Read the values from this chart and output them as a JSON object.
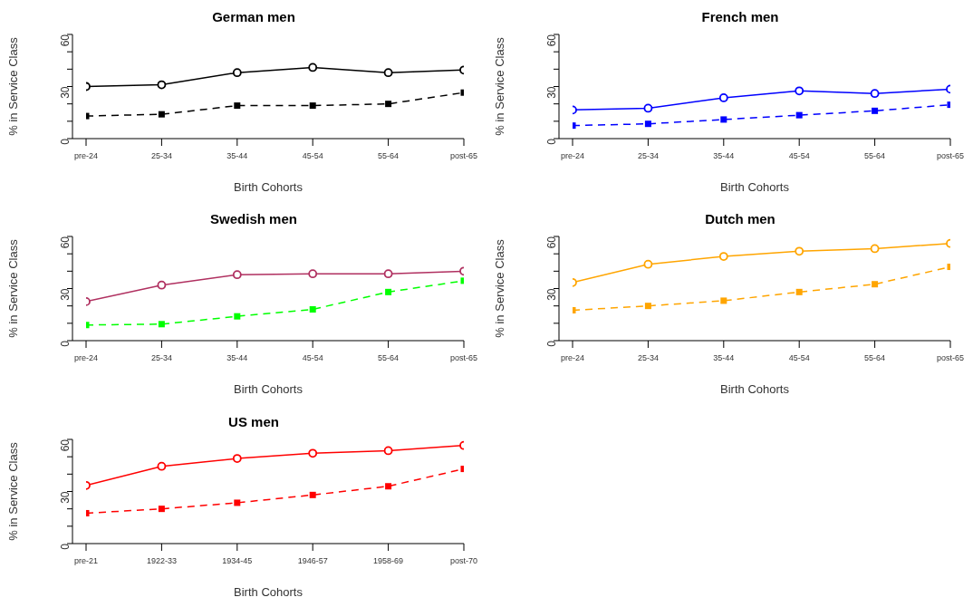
{
  "chart_data": [
    {
      "type": "line",
      "title": "German men",
      "xlabel": "Birth Cohorts",
      "ylabel": "% in Service Class",
      "categories": [
        "pre-24",
        "25-34",
        "35-44",
        "45-54",
        "55-64",
        "post-65"
      ],
      "ylim": [
        0,
        60
      ],
      "yticks": [
        0,
        {
          "value": 10,
          "label": null
        },
        {
          "value": 20,
          "label": null
        },
        30,
        {
          "value": 40,
          "label": null
        },
        {
          "value": 50,
          "label": null
        },
        60
      ],
      "grid": false,
      "legend": false,
      "series": [
        {
          "color": "#000000",
          "marker": "circle",
          "line_style": "solid",
          "values": [
            30,
            31,
            38,
            41,
            38,
            39.5
          ]
        },
        {
          "color": "#000000",
          "marker": "square",
          "line_style": "dashed",
          "values": [
            13,
            14,
            19,
            19,
            20,
            26.5
          ]
        }
      ]
    },
    {
      "type": "line",
      "title": "French men",
      "xlabel": "Birth Cohorts",
      "ylabel": "% in Service Class",
      "categories": [
        "pre-24",
        "25-34",
        "35-44",
        "45-54",
        "55-64",
        "post-65"
      ],
      "ylim": [
        0,
        60
      ],
      "yticks": [
        0,
        {
          "value": 10,
          "label": null
        },
        {
          "value": 20,
          "label": null
        },
        30,
        {
          "value": 40,
          "label": null
        },
        {
          "value": 50,
          "label": null
        },
        60
      ],
      "grid": false,
      "legend": false,
      "series": [
        {
          "color": "#0000ff",
          "marker": "circle",
          "line_style": "solid",
          "values": [
            16.5,
            17.5,
            23.5,
            27.5,
            26,
            28.5
          ]
        },
        {
          "color": "#0000ff",
          "marker": "square",
          "line_style": "dashed",
          "values": [
            7.5,
            8.5,
            11,
            13.5,
            16,
            19.5
          ]
        }
      ]
    },
    {
      "type": "line",
      "title": "Swedish men",
      "xlabel": "Birth Cohorts",
      "ylabel": "% in Service Class",
      "categories": [
        "pre-24",
        "25-34",
        "35-44",
        "45-54",
        "55-64",
        "post-65"
      ],
      "ylim": [
        0,
        60
      ],
      "yticks": [
        0,
        {
          "value": 10,
          "label": null
        },
        {
          "value": 20,
          "label": null
        },
        30,
        {
          "value": 40,
          "label": null
        },
        {
          "value": 50,
          "label": null
        },
        60
      ],
      "grid": false,
      "legend": false,
      "series": [
        {
          "color": "#b03060",
          "marker": "circle",
          "line_style": "solid",
          "values": [
            22.5,
            32,
            38,
            38.5,
            38.5,
            40
          ]
        },
        {
          "color": "#00ff00",
          "marker": "square",
          "line_style": "dashed",
          "values": [
            9,
            9.5,
            14,
            18,
            28,
            34.5
          ]
        }
      ]
    },
    {
      "type": "line",
      "title": "Dutch men",
      "xlabel": "Birth Cohorts",
      "ylabel": "% in Service Class",
      "categories": [
        "pre-24",
        "25-34",
        "35-44",
        "45-54",
        "55-64",
        "post-65"
      ],
      "ylim": [
        0,
        60
      ],
      "yticks": [
        0,
        {
          "value": 10,
          "label": null
        },
        {
          "value": 20,
          "label": null
        },
        30,
        {
          "value": 40,
          "label": null
        },
        {
          "value": 50,
          "label": null
        },
        60
      ],
      "grid": false,
      "legend": false,
      "series": [
        {
          "color": "#ffa500",
          "marker": "circle",
          "line_style": "solid",
          "values": [
            33.5,
            44,
            48.5,
            51.5,
            53,
            56
          ]
        },
        {
          "color": "#ffa500",
          "marker": "square",
          "line_style": "dashed",
          "values": [
            17.5,
            20,
            23,
            28,
            32.5,
            42.5
          ]
        }
      ]
    },
    {
      "type": "line",
      "title": "US men",
      "xlabel": "Birth Cohorts",
      "ylabel": "% in Service Class",
      "categories": [
        "pre-21",
        "1922-33",
        "1934-45",
        "1946-57",
        "1958-69",
        "post-70"
      ],
      "ylim": [
        0,
        60
      ],
      "yticks": [
        0,
        {
          "value": 10,
          "label": null
        },
        {
          "value": 20,
          "label": null
        },
        30,
        {
          "value": 40,
          "label": null
        },
        {
          "value": 50,
          "label": null
        },
        60
      ],
      "grid": false,
      "legend": false,
      "series": [
        {
          "color": "#ff0000",
          "marker": "circle",
          "line_style": "solid",
          "values": [
            33.5,
            44.5,
            49,
            52,
            53.5,
            56.5
          ]
        },
        {
          "color": "#ff0000",
          "marker": "square",
          "line_style": "dashed",
          "values": [
            17.5,
            20,
            23.5,
            28,
            33,
            43
          ]
        }
      ]
    }
  ]
}
